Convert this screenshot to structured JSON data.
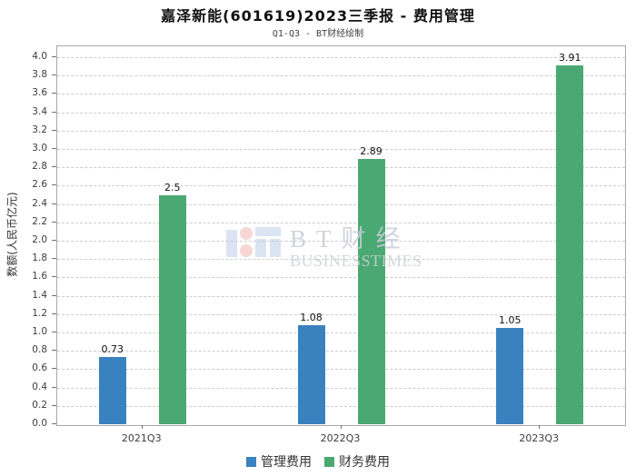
{
  "chart_data": {
    "type": "bar",
    "title": "嘉泽新能(601619)2023三季报 - 费用管理",
    "subtitle": "Q1-Q3 - BT财经绘制",
    "categories": [
      "2021Q3",
      "2022Q3",
      "2023Q3"
    ],
    "series": [
      {
        "name": "管理费用",
        "color": "#3a82bf",
        "values": [
          0.73,
          1.08,
          1.05
        ],
        "labels": [
          "0.73",
          "1.08",
          "1.05"
        ]
      },
      {
        "name": "财务费用",
        "color": "#4aa973",
        "values": [
          2.5,
          2.89,
          3.91
        ],
        "labels": [
          "2.5",
          "2.89",
          "3.91"
        ]
      }
    ],
    "xlabel": "",
    "ylabel": "数额(人民币亿元)",
    "ylim": [
      0.0,
      4.0
    ],
    "ytick_step": 0.2,
    "grid": true,
    "grid_style": "dashed",
    "legend_position": "bottom-center"
  },
  "watermark": {
    "line1": "BT财经",
    "line2": "BUSINESSTIMES"
  },
  "colors": {
    "bar_blue": "#3a82bf",
    "bar_green": "#4aa973",
    "gridline": "#cdcdcd",
    "frame": "#a8a8a8"
  }
}
